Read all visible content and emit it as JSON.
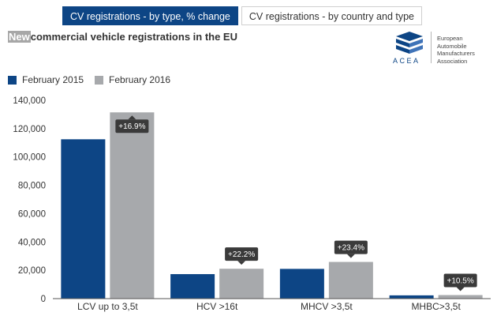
{
  "tabs": [
    {
      "label": "CV registrations - by type, % change",
      "active": true
    },
    {
      "label": "CV registrations - by country and type",
      "active": false
    }
  ],
  "title": {
    "highlight": "New",
    "rest": "commercial vehicle registrations in the EU"
  },
  "logo": {
    "acronym": "ACEA",
    "org_lines": [
      "European",
      "Automobile",
      "Manufacturers",
      "Association"
    ]
  },
  "colors": {
    "series_2015": "#0d4585",
    "series_2016": "#a7a9ac",
    "callout": "#3a3a3a"
  },
  "chart_data": {
    "type": "bar",
    "categories": [
      "LCV up to 3,5t",
      "HCV >16t",
      "MHCV >3,5t",
      "MHBC>3,5t"
    ],
    "series": [
      {
        "name": "February 2015",
        "values": [
          112500,
          17300,
          21000,
          2300
        ]
      },
      {
        "name": "February 2016",
        "values": [
          131500,
          21100,
          25900,
          2500
        ]
      }
    ],
    "annotations": [
      "+16.9%",
      "+22.2%",
      "+23.4%",
      "+10.5%"
    ],
    "yticks": [
      "0",
      "20,000",
      "40,000",
      "60,000",
      "80,000",
      "100,000",
      "120,000",
      "140,000"
    ],
    "ylim": [
      0,
      140000
    ],
    "grid": false,
    "legend": "top-left"
  }
}
